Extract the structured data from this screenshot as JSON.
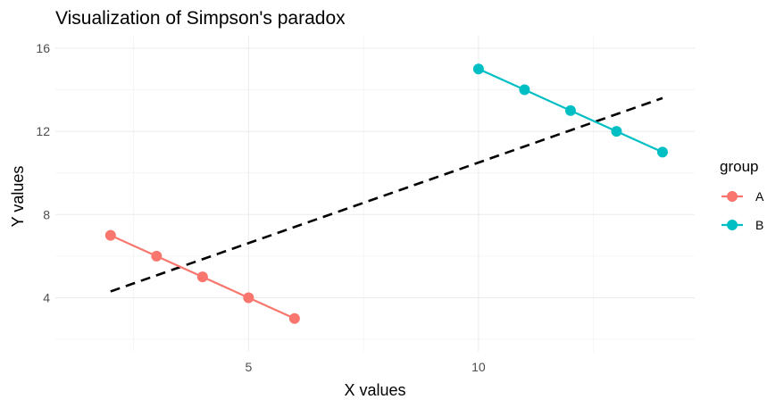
{
  "chart_data": {
    "type": "line",
    "title": "Visualization of Simpson's paradox",
    "xlabel": "X values",
    "ylabel": "Y values",
    "xlim": [
      0.8,
      14.7
    ],
    "ylim": [
      1.4,
      16.6
    ],
    "x_ticks": [
      5,
      10
    ],
    "x_tick_labels": [
      "5",
      "10"
    ],
    "x_minor_ticks": [
      2.5,
      7.5,
      12.5
    ],
    "y_ticks": [
      4,
      8,
      12,
      16
    ],
    "y_tick_labels": [
      "4",
      "8",
      "12",
      "16"
    ],
    "y_minor_ticks": [
      2,
      6,
      10,
      14
    ],
    "grid": true,
    "legend": {
      "title": "group",
      "position": "right"
    },
    "series": [
      {
        "name": "A",
        "color": "#F8766D",
        "x": [
          2,
          3,
          4,
          5,
          6
        ],
        "y": [
          7,
          6,
          5,
          4,
          3
        ]
      },
      {
        "name": "B",
        "color": "#00BFC4",
        "x": [
          10,
          11,
          12,
          13,
          14
        ],
        "y": [
          15,
          14,
          13,
          12,
          11
        ]
      }
    ],
    "trend_line": {
      "style": "dashed",
      "color": "#000000",
      "x": [
        2,
        14
      ],
      "y": [
        4.3,
        13.6
      ]
    }
  }
}
